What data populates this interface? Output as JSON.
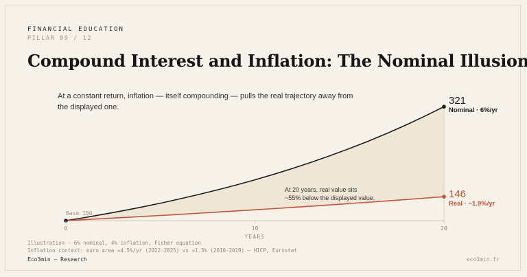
{
  "header": {
    "eyebrow": "FINANCIAL EDUCATION",
    "pillar": "PILLAR 09 / 12",
    "title": "Compound Interest and Inflation: The Nominal Illusion",
    "subtitle": "At a constant return, inflation — itself compounding — pulls the real trajectory away from the displayed one."
  },
  "footer": {
    "note1": "Illustration · 6% nominal, 4% inflation, Fisher equation",
    "note2": "Inflation context: euro area ≈4.5%/yr (2022-2025) vs ≈1.3% (2010-2019) — HICP, Eurostat",
    "brand": "Eco3min — Research",
    "site": "eco3min.fr"
  },
  "colors": {
    "nominal": "#1c1c1c",
    "real": "#c0533a",
    "fill": "#efe6d6",
    "background": "#f6f2ea"
  },
  "chart_data": {
    "type": "line",
    "x": [
      0,
      1,
      2,
      3,
      4,
      5,
      6,
      7,
      8,
      9,
      10,
      11,
      12,
      13,
      14,
      15,
      16,
      17,
      18,
      19,
      20
    ],
    "series": [
      {
        "name": "Nominal · 6%/yr",
        "values": [
          100,
          106,
          112.4,
          119.1,
          126.2,
          133.8,
          141.9,
          150.4,
          159.4,
          168.9,
          179.1,
          189.8,
          201.2,
          213.3,
          226.1,
          239.7,
          254.0,
          269.3,
          285.4,
          302.6,
          320.7
        ],
        "end_value": "321"
      },
      {
        "name": "Real · ~1.9%/yr",
        "values": [
          100,
          101.9,
          103.9,
          105.9,
          107.9,
          110.0,
          112.1,
          114.3,
          116.5,
          118.7,
          121.0,
          123.3,
          125.7,
          128.1,
          130.6,
          133.1,
          135.6,
          138.2,
          140.9,
          143.6,
          146.4
        ],
        "end_value": "146"
      }
    ],
    "xticks": [
      "0",
      "10",
      "20"
    ],
    "xlabel": "YEARS",
    "xlim": [
      0,
      20
    ],
    "ylim": [
      100,
      321
    ],
    "base_label": "Base 100",
    "annotation": [
      "At 20 years, real value sits",
      "~55% below the displayed value."
    ],
    "grid": false
  }
}
